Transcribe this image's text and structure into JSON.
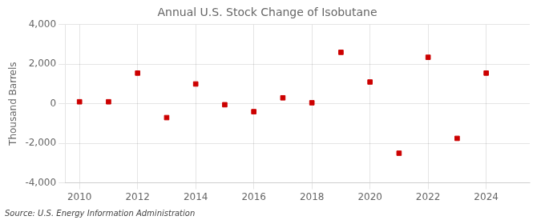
{
  "chart_data": {
    "type": "scatter",
    "title": "Annual U.S. Stock Change of Isobutane",
    "y_label": "Thousand Barrels",
    "annotations": [
      "Source: U.S. Energy Information Administration"
    ],
    "x": [
      2010,
      2011,
      2012,
      2013,
      2014,
      2015,
      2016,
      2017,
      2018,
      2019,
      2020,
      2021,
      2022,
      2023,
      2024
    ],
    "values": [
      100,
      100,
      1550,
      -700,
      1000,
      -50,
      -400,
      300,
      50,
      2600,
      1100,
      -2500,
      2350,
      -1750,
      1550
    ],
    "color": "#cc0000",
    "marker": "square",
    "xlim": [
      2009.5,
      2025.5
    ],
    "xticks": [
      2010,
      2012,
      2014,
      2016,
      2018,
      2020,
      2022,
      2024
    ],
    "ylim": [
      -4000,
      4000
    ],
    "yticks": [
      {
        "value": -4000,
        "label": "-4,000"
      },
      {
        "value": -2000,
        "label": "-2,000"
      },
      0,
      {
        "value": 2000,
        "label": "2,000"
      },
      {
        "value": 4000,
        "label": "4,000"
      }
    ],
    "grid": true
  }
}
